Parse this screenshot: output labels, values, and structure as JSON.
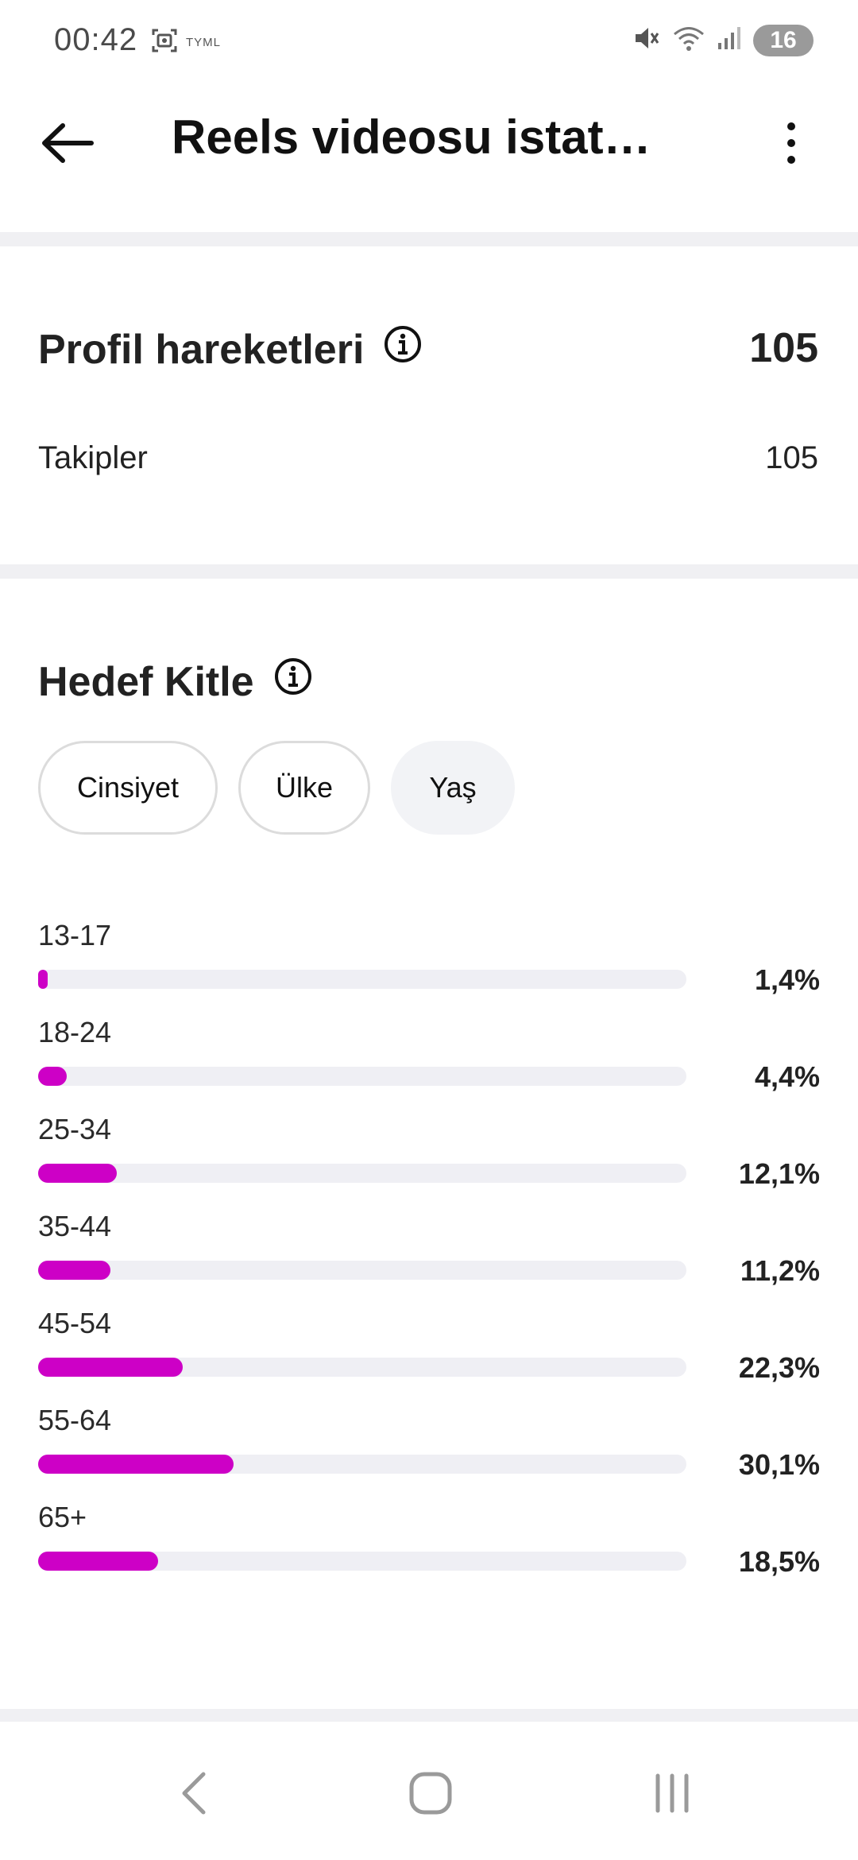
{
  "status_bar": {
    "time": "00:42",
    "carrier_tag": "TYML",
    "battery": "16",
    "icons": [
      "screenshot-icon",
      "mute-icon",
      "wifi-icon",
      "signal-icon",
      "battery-icon"
    ]
  },
  "header": {
    "title": "Reels videosu istat…",
    "back_icon": "arrow-left-icon",
    "more_icon": "more-vertical-icon"
  },
  "profile": {
    "title": "Profil hareketleri",
    "total": "105",
    "rows": [
      {
        "label": "Takipler",
        "value": "105"
      }
    ]
  },
  "audience": {
    "title": "Hedef Kitle",
    "tabs": [
      {
        "label": "Cinsiyet",
        "selected": false
      },
      {
        "label": "Ülke",
        "selected": false
      },
      {
        "label": "Yaş",
        "selected": true
      }
    ]
  },
  "chart_data": {
    "type": "bar",
    "orientation": "horizontal",
    "categories": [
      "13-17",
      "18-24",
      "25-34",
      "35-44",
      "45-54",
      "55-64",
      "65+"
    ],
    "values": [
      1.4,
      4.4,
      12.1,
      11.2,
      22.3,
      30.1,
      18.5
    ],
    "value_labels": [
      "1,4%",
      "4,4%",
      "12,1%",
      "11,2%",
      "22,3%",
      "30,1%",
      "18,5%"
    ],
    "max": 100,
    "bar_color": "#cd00c6",
    "track_color": "#efeff4"
  },
  "colors": {
    "accent": "#cd00c6",
    "divider": "#f0f0f3",
    "text": "#222222"
  },
  "nav_bar": {
    "icons": [
      "nav-back-icon",
      "nav-home-icon",
      "nav-recents-icon"
    ]
  }
}
